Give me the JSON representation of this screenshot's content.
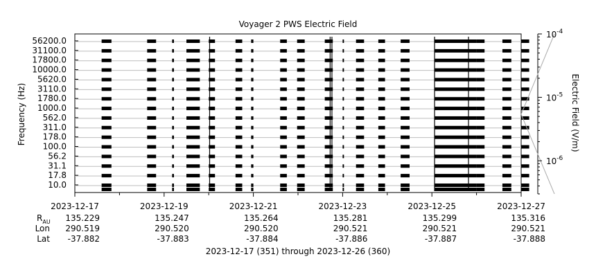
{
  "chart_data": {
    "type": "heatmap",
    "title": "Voyager 2 PWS Electric Field",
    "ylabel": "Frequency (Hz)",
    "colorbar_label": "Electric Field (V/m)",
    "colorbar_scale": "log",
    "colorbar_ticks": [
      {
        "base": "10",
        "exp": "-4",
        "value": 0.0001
      },
      {
        "base": "10",
        "exp": "-5",
        "value": 1e-05
      },
      {
        "base": "10",
        "exp": "-6",
        "value": 1e-06
      }
    ],
    "colorbar_range": [
      3e-07,
      0.0001
    ],
    "frequency_channels": [
      "56200.0",
      "31100.0",
      "17800.0",
      "10000.0",
      "5620.0",
      "3110.0",
      "1780.0",
      "1000.0",
      "562.0",
      "311.0",
      "178.0",
      "100.0",
      "56.2",
      "31.1",
      "17.8",
      "10.0"
    ],
    "x_range": [
      "2023-12-17",
      "2023-12-27"
    ],
    "x_ticks": [
      "2023-12-17",
      "2023-12-19",
      "2023-12-21",
      "2023-12-23",
      "2023-12-25",
      "2023-12-27"
    ],
    "ephemeris_labels": {
      "r": "R",
      "r_sub": "AU",
      "lon": "Lon",
      "lat": "Lat"
    },
    "ephemeris": [
      {
        "r": "135.229",
        "lon": "290.519",
        "lat": "-37.882"
      },
      {
        "r": "135.247",
        "lon": "290.520",
        "lat": "-37.883"
      },
      {
        "r": "135.264",
        "lon": "290.520",
        "lat": "-37.884"
      },
      {
        "r": "135.281",
        "lon": "290.521",
        "lat": "-37.886"
      },
      {
        "r": "135.299",
        "lon": "290.521",
        "lat": "-37.887"
      },
      {
        "r": "135.316",
        "lon": "290.521",
        "lat": "-37.888"
      }
    ],
    "footer": "2023-12-17 (351) through 2023-12-26 (360)",
    "observation_days": [
      [
        0.6,
        0.82
      ],
      [
        1.62,
        1.82
      ],
      [
        2.18,
        2.22
      ],
      [
        2.5,
        2.8
      ],
      [
        3.0,
        3.14
      ],
      [
        3.6,
        3.75
      ],
      [
        3.95,
        4.0
      ],
      [
        4.6,
        4.75
      ],
      [
        4.98,
        5.15
      ],
      [
        5.6,
        5.78
      ],
      [
        6.0,
        6.03
      ],
      [
        6.3,
        6.48
      ],
      [
        6.8,
        6.95
      ],
      [
        7.3,
        7.5
      ],
      [
        8.06,
        9.0
      ],
      [
        9.0,
        9.18
      ],
      [
        9.58,
        9.78
      ],
      [
        10.0,
        10.18
      ]
    ],
    "spikes": [
      3.02,
      5.72,
      5.76,
      8.06,
      8.82
    ]
  }
}
